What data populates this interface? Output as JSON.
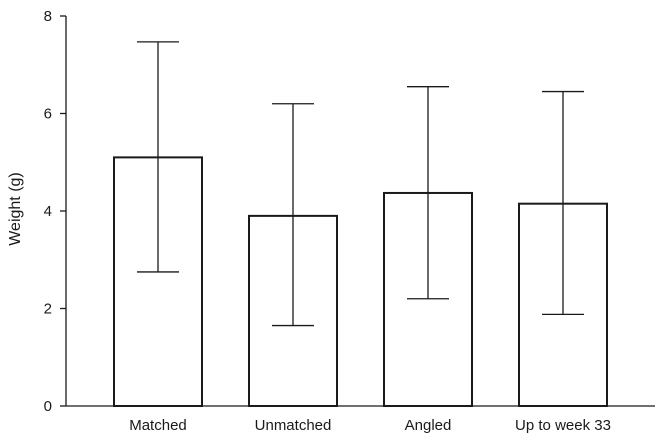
{
  "chart_data": {
    "type": "bar",
    "title": "",
    "xlabel": "",
    "ylabel": "Weight (g)",
    "ylim": [
      0,
      8
    ],
    "yticks": [
      0,
      2,
      4,
      6,
      8
    ],
    "categories": [
      "Matched",
      "Unmatched",
      "Angled",
      "Up to week 33"
    ],
    "values": [
      5.1,
      3.9,
      4.37,
      4.15
    ],
    "error_low": [
      2.75,
      1.65,
      2.2,
      1.88
    ],
    "error_high": [
      7.47,
      6.2,
      6.55,
      6.45
    ],
    "grid": false,
    "legend": "none",
    "colors": {
      "bar_fill": "#ffffff",
      "stroke": "#1a1a1a"
    }
  }
}
